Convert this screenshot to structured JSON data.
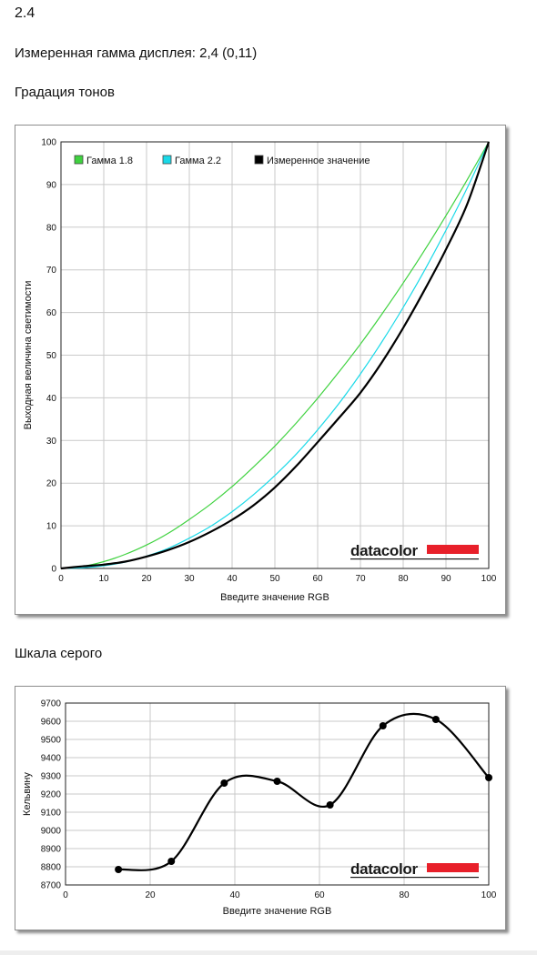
{
  "page": {
    "heading": "2.4",
    "gamma_line": "Измеренная гамма дисплея: 2,4 (0,11)",
    "section1_title": "Градация тонов",
    "section2_title": "Шкала серого",
    "brand": "datacolor",
    "brand_color": "#e8202a"
  },
  "chart_data": [
    {
      "type": "line",
      "xlabel": "Введите значение RGB",
      "ylabel": "Выходная величина светимости",
      "xlim": [
        0,
        100
      ],
      "ylim": [
        0,
        100
      ],
      "xticks": [
        "0",
        "10",
        "20",
        "30",
        "40",
        "50",
        "60",
        "70",
        "80",
        "90",
        "100"
      ],
      "yticks": [
        "0",
        "10",
        "20",
        "30",
        "40",
        "50",
        "60",
        "70",
        "80",
        "90",
        "100"
      ],
      "grid": true,
      "legend_placement": "top-left",
      "series": [
        {
          "name": "Гамма 1.8",
          "color": "#3fd23f",
          "x": [
            0,
            5,
            10,
            15,
            20,
            25,
            30,
            35,
            40,
            45,
            50,
            55,
            60,
            65,
            70,
            75,
            80,
            85,
            90,
            95,
            100
          ],
          "values": [
            0,
            0.46,
            1.6,
            3.3,
            5.5,
            8.2,
            11.5,
            15.1,
            19.2,
            23.8,
            28.7,
            34.1,
            39.9,
            46.1,
            52.6,
            59.6,
            66.9,
            74.6,
            82.7,
            91.2,
            100
          ]
        },
        {
          "name": "Гамма 2.2",
          "color": "#19d9e8",
          "x": [
            0,
            5,
            10,
            15,
            20,
            25,
            30,
            35,
            40,
            45,
            50,
            55,
            60,
            65,
            70,
            75,
            80,
            85,
            90,
            95,
            100
          ],
          "values": [
            0,
            0.14,
            0.63,
            1.5,
            2.9,
            4.7,
            7.1,
            9.9,
            13.3,
            17.3,
            21.8,
            26.8,
            32.5,
            38.7,
            45.6,
            53.1,
            61.2,
            69.9,
            79.3,
            89.3,
            100
          ]
        },
        {
          "name": "Измеренное значение",
          "color": "#000000",
          "x": [
            0,
            5,
            10,
            15,
            20,
            25,
            30,
            35,
            40,
            45,
            50,
            55,
            60,
            65,
            70,
            75,
            80,
            85,
            90,
            95,
            100
          ],
          "values": [
            0,
            0.5,
            0.9,
            1.6,
            2.8,
            4.3,
            6.2,
            8.6,
            11.4,
            14.8,
            19.0,
            24.0,
            29.6,
            35.3,
            41.2,
            48.3,
            56.4,
            65.3,
            74.8,
            85.5,
            100
          ]
        }
      ]
    },
    {
      "type": "line",
      "xlabel": "Введите значение RGB",
      "ylabel": "Кельвину",
      "xlim": [
        0,
        100
      ],
      "ylim": [
        8700,
        9700
      ],
      "xticks": [
        "0",
        "20",
        "40",
        "60",
        "80",
        "100"
      ],
      "yticks": [
        "8700",
        "8800",
        "8900",
        "9000",
        "9100",
        "9200",
        "9300",
        "9400",
        "9500",
        "9600",
        "9700"
      ],
      "grid": true,
      "series": [
        {
          "color": "#000000",
          "x": [
            12.5,
            25,
            37.5,
            50,
            62.5,
            75,
            87.5,
            100
          ],
          "values": [
            8785,
            8830,
            9260,
            9270,
            9140,
            9575,
            9610,
            9290
          ]
        }
      ]
    }
  ]
}
